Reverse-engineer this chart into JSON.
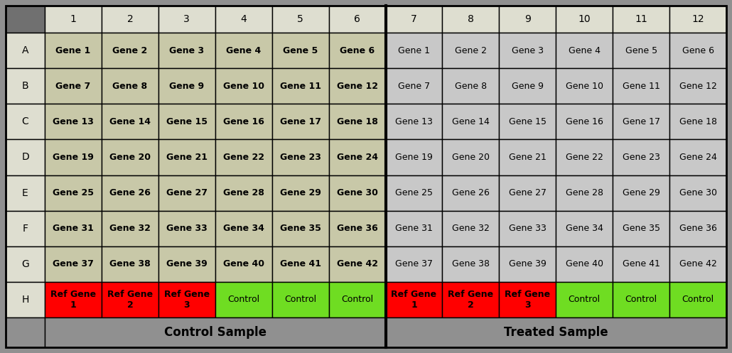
{
  "col_headers": [
    "1",
    "2",
    "3",
    "4",
    "5",
    "6",
    "7",
    "8",
    "9",
    "10",
    "11",
    "12"
  ],
  "row_headers": [
    "A",
    "B",
    "C",
    "D",
    "E",
    "F",
    "G",
    "H"
  ],
  "cell_data": [
    [
      "Gene 1",
      "Gene 2",
      "Gene 3",
      "Gene 4",
      "Gene 5",
      "Gene 6",
      "Gene 1",
      "Gene 2",
      "Gene 3",
      "Gene 4",
      "Gene 5",
      "Gene 6"
    ],
    [
      "Gene 7",
      "Gene 8",
      "Gene 9",
      "Gene 10",
      "Gene 11",
      "Gene 12",
      "Gene 7",
      "Gene 8",
      "Gene 9",
      "Gene 10",
      "Gene 11",
      "Gene 12"
    ],
    [
      "Gene 13",
      "Gene 14",
      "Gene 15",
      "Gene 16",
      "Gene 17",
      "Gene 18",
      "Gene 13",
      "Gene 14",
      "Gene 15",
      "Gene 16",
      "Gene 17",
      "Gene 18"
    ],
    [
      "Gene 19",
      "Gene 20",
      "Gene 21",
      "Gene 22",
      "Gene 23",
      "Gene 24",
      "Gene 19",
      "Gene 20",
      "Gene 21",
      "Gene 22",
      "Gene 23",
      "Gene 24"
    ],
    [
      "Gene 25",
      "Gene 26",
      "Gene 27",
      "Gene 28",
      "Gene 29",
      "Gene 30",
      "Gene 25",
      "Gene 26",
      "Gene 27",
      "Gene 28",
      "Gene 29",
      "Gene 30"
    ],
    [
      "Gene 31",
      "Gene 32",
      "Gene 33",
      "Gene 34",
      "Gene 35",
      "Gene 36",
      "Gene 31",
      "Gene 32",
      "Gene 33",
      "Gene 34",
      "Gene 35",
      "Gene 36"
    ],
    [
      "Gene 37",
      "Gene 38",
      "Gene 39",
      "Gene 40",
      "Gene 41",
      "Gene 42",
      "Gene 37",
      "Gene 38",
      "Gene 39",
      "Gene 40",
      "Gene 41",
      "Gene 42"
    ],
    [
      "Ref Gene\n1",
      "Ref Gene\n2",
      "Ref Gene\n3",
      "Control",
      "Control",
      "Control",
      "Ref Gene\n1",
      "Ref Gene\n2",
      "Ref Gene\n3",
      "Control",
      "Control",
      "Control"
    ]
  ],
  "header_corner_color": "#707070",
  "header_row_color": "#deded0",
  "row_label_color": "#deded0",
  "left_gene_color": "#c8c8a8",
  "right_gene_color": "#c8c8c8",
  "ref_gene_color": "#ff0000",
  "control_color": "#6fdd22",
  "label_bg_color": "#909090",
  "background_color": "#909090",
  "border_color": "#000000",
  "label_control": "Control Sample",
  "label_treated": "Treated Sample",
  "font_size_cell": 9,
  "font_size_header": 10,
  "font_size_label": 12
}
